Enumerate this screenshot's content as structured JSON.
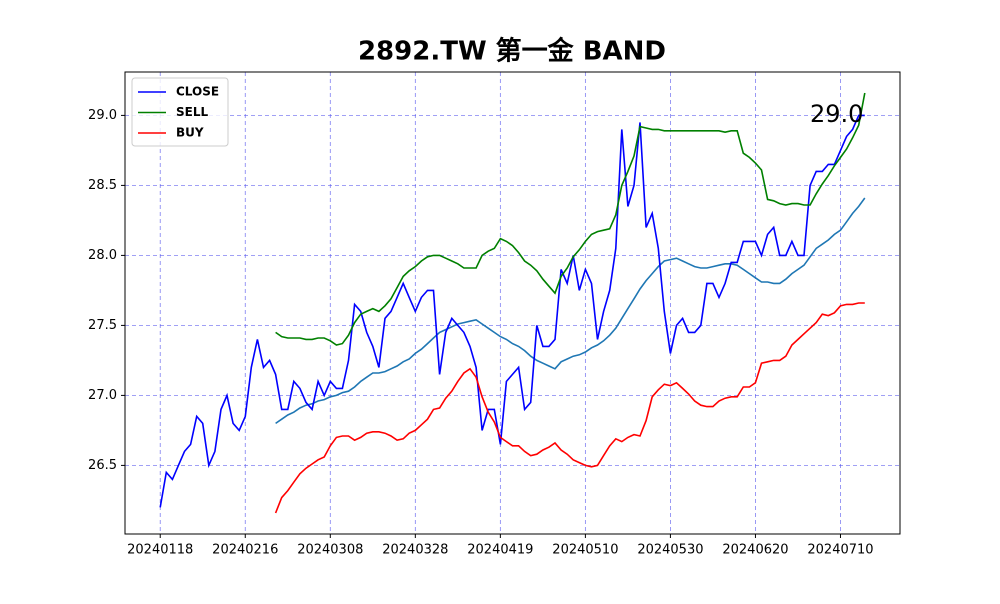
{
  "chart_data": {
    "type": "line",
    "title": "2892.TW 第一金 BAND",
    "categories": [
      "20240118",
      null,
      null,
      null,
      null,
      null,
      null,
      null,
      null,
      null,
      null,
      null,
      null,
      null,
      "20240216",
      null,
      null,
      null,
      null,
      null,
      null,
      null,
      null,
      null,
      null,
      null,
      null,
      null,
      "20240308",
      null,
      null,
      null,
      null,
      null,
      null,
      null,
      null,
      null,
      null,
      null,
      null,
      null,
      "20240328",
      null,
      null,
      null,
      null,
      null,
      null,
      null,
      null,
      null,
      null,
      null,
      null,
      null,
      "20240419",
      null,
      null,
      null,
      null,
      null,
      null,
      null,
      null,
      null,
      null,
      null,
      null,
      null,
      "20240510",
      null,
      null,
      null,
      null,
      null,
      null,
      null,
      null,
      null,
      null,
      null,
      null,
      null,
      "20240530",
      null,
      null,
      null,
      null,
      null,
      null,
      null,
      null,
      null,
      null,
      null,
      null,
      null,
      "20240620",
      null,
      null,
      null,
      null,
      null,
      null,
      null,
      null,
      null,
      null,
      null,
      null,
      null,
      "20240710",
      null,
      null,
      null,
      null
    ],
    "series": [
      {
        "name": "CLOSE",
        "color": "#0000ff",
        "values": [
          26.2,
          26.45,
          26.4,
          26.5,
          26.6,
          26.65,
          26.85,
          26.8,
          26.5,
          26.6,
          26.9,
          27.0,
          26.8,
          26.75,
          26.85,
          27.2,
          27.4,
          27.2,
          27.25,
          27.15,
          26.9,
          26.9,
          27.1,
          27.05,
          26.95,
          26.9,
          27.1,
          27.0,
          27.1,
          27.05,
          27.05,
          27.25,
          27.65,
          27.6,
          27.45,
          27.35,
          27.2,
          27.55,
          27.6,
          27.7,
          27.8,
          27.7,
          27.6,
          27.7,
          27.75,
          27.75,
          27.15,
          27.45,
          27.55,
          27.5,
          27.45,
          27.35,
          27.2,
          26.75,
          26.9,
          26.9,
          26.65,
          27.1,
          27.15,
          27.2,
          26.9,
          26.95,
          27.5,
          27.35,
          27.35,
          27.4,
          27.9,
          27.8,
          28.0,
          27.75,
          27.9,
          27.8,
          27.4,
          27.6,
          27.75,
          28.05,
          28.9,
          28.35,
          28.5,
          28.95,
          28.2,
          28.3,
          28.05,
          27.6,
          27.3,
          27.5,
          27.55,
          27.45,
          27.45,
          27.5,
          27.8,
          27.8,
          27.7,
          27.8,
          27.95,
          27.95,
          28.1,
          28.1,
          28.1,
          28.0,
          28.15,
          28.2,
          28.0,
          28.0,
          28.1,
          28.0,
          28.0,
          28.5,
          28.6,
          28.6,
          28.65,
          28.65,
          28.75,
          28.85,
          28.9,
          29.0,
          29.0
        ]
      },
      {
        "name": "SELL",
        "color": "#008000",
        "values": [
          null,
          null,
          null,
          null,
          null,
          null,
          null,
          null,
          null,
          null,
          null,
          null,
          null,
          null,
          null,
          null,
          null,
          null,
          null,
          27.45,
          27.42,
          27.41,
          27.41,
          27.41,
          27.4,
          27.4,
          27.41,
          27.41,
          27.39,
          27.36,
          27.37,
          27.43,
          27.52,
          27.58,
          27.6,
          27.62,
          27.6,
          27.64,
          27.69,
          27.77,
          27.85,
          27.89,
          27.92,
          27.96,
          27.99,
          28.0,
          28.0,
          27.98,
          27.96,
          27.94,
          27.91,
          27.91,
          27.91,
          28.0,
          28.03,
          28.05,
          28.12,
          28.1,
          28.07,
          28.02,
          27.96,
          27.93,
          27.89,
          27.83,
          27.78,
          27.73,
          27.85,
          27.91,
          27.99,
          28.04,
          28.1,
          28.15,
          28.17,
          28.18,
          28.19,
          28.29,
          28.5,
          28.6,
          28.71,
          28.92,
          28.91,
          28.9,
          28.9,
          28.89,
          28.89,
          28.89,
          28.89,
          28.89,
          28.89,
          28.89,
          28.89,
          28.89,
          28.89,
          28.88,
          28.89,
          28.89,
          28.73,
          28.7,
          28.66,
          28.61,
          28.4,
          28.39,
          28.37,
          28.36,
          28.37,
          28.37,
          28.36,
          28.36,
          28.44,
          28.51,
          28.57,
          28.64,
          28.7,
          28.76,
          28.84,
          28.93,
          29.16
        ]
      },
      {
        "name": "BUY",
        "color": "#ff0000",
        "values": [
          null,
          null,
          null,
          null,
          null,
          null,
          null,
          null,
          null,
          null,
          null,
          null,
          null,
          null,
          null,
          null,
          null,
          null,
          null,
          26.16,
          26.27,
          26.32,
          26.38,
          26.44,
          26.48,
          26.51,
          26.54,
          26.56,
          26.64,
          26.7,
          26.71,
          26.71,
          26.68,
          26.7,
          26.73,
          26.74,
          26.74,
          26.73,
          26.71,
          26.68,
          26.69,
          26.73,
          26.75,
          26.79,
          26.83,
          26.9,
          26.91,
          26.98,
          27.03,
          27.1,
          27.16,
          27.19,
          27.13,
          26.99,
          26.88,
          26.81,
          26.7,
          26.67,
          26.64,
          26.64,
          26.6,
          26.57,
          26.58,
          26.61,
          26.63,
          26.66,
          26.61,
          26.58,
          26.54,
          26.52,
          26.5,
          26.49,
          26.5,
          26.57,
          26.64,
          26.69,
          26.67,
          26.7,
          26.72,
          26.71,
          26.82,
          26.99,
          27.04,
          27.08,
          27.07,
          27.09,
          27.05,
          27.01,
          26.96,
          26.93,
          26.92,
          26.92,
          26.96,
          26.98,
          26.99,
          26.99,
          27.06,
          27.06,
          27.09,
          27.23,
          27.24,
          27.25,
          27.25,
          27.28,
          27.36,
          27.4,
          27.44,
          27.48,
          27.52,
          27.58,
          27.57,
          27.59,
          27.64,
          27.65,
          27.65,
          27.66,
          27.66
        ]
      },
      {
        "color": "#1f77b4",
        "values": [
          null,
          null,
          null,
          null,
          null,
          null,
          null,
          null,
          null,
          null,
          null,
          null,
          null,
          null,
          null,
          null,
          null,
          null,
          null,
          26.8,
          26.83,
          26.86,
          26.88,
          26.91,
          26.93,
          26.94,
          26.96,
          26.97,
          26.99,
          27.0,
          27.02,
          27.03,
          27.06,
          27.1,
          27.13,
          27.16,
          27.16,
          27.17,
          27.19,
          27.21,
          27.24,
          27.26,
          27.3,
          27.33,
          27.37,
          27.41,
          27.45,
          27.47,
          27.49,
          27.51,
          27.52,
          27.53,
          27.54,
          27.51,
          27.48,
          27.45,
          27.42,
          27.4,
          27.37,
          27.35,
          27.32,
          27.28,
          27.25,
          27.23,
          27.21,
          27.19,
          27.24,
          27.26,
          27.28,
          27.29,
          27.31,
          27.34,
          27.36,
          27.39,
          27.43,
          27.48,
          27.55,
          27.62,
          27.69,
          27.76,
          27.82,
          27.87,
          27.92,
          27.96,
          27.97,
          27.98,
          27.96,
          27.94,
          27.92,
          27.91,
          27.91,
          27.92,
          27.93,
          27.94,
          27.94,
          27.93,
          27.9,
          27.87,
          27.84,
          27.81,
          27.81,
          27.8,
          27.8,
          27.83,
          27.87,
          27.9,
          27.93,
          27.99,
          28.05,
          28.08,
          28.11,
          28.15,
          28.18,
          28.24,
          28.3,
          28.35,
          28.41
        ]
      }
    ],
    "ylim": [
      26.01,
      29.31
    ],
    "yticks": [
      26.5,
      {
        "value": 27,
        "label": "27.0"
      },
      27.5,
      {
        "value": 28,
        "label": "28.0"
      },
      28.5,
      {
        "value": 29,
        "label": "29.0"
      }
    ],
    "grid": true,
    "legend": "upper left",
    "annotations": [
      {
        "text": "29.0"
      }
    ]
  }
}
